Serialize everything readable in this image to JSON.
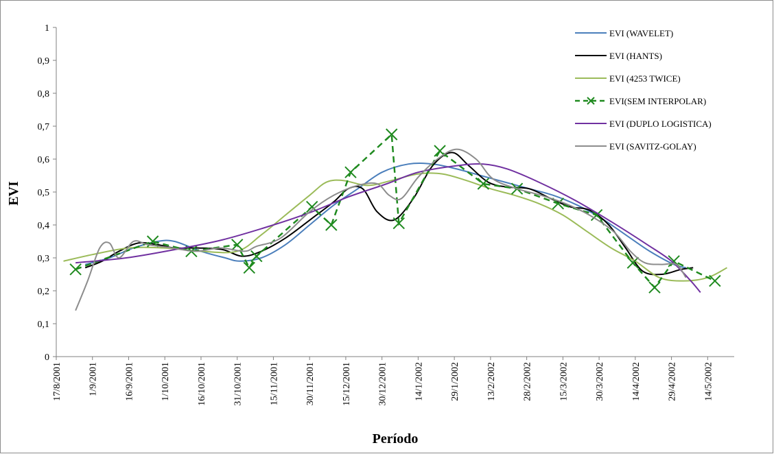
{
  "chart_data": {
    "type": "line",
    "title": "",
    "xlabel": "Período",
    "ylabel": "EVI",
    "ylim": [
      0,
      1
    ],
    "y_ticks": [
      "0",
      "0,1",
      "0,2",
      "0,3",
      "0,4",
      "0,5",
      "0,6",
      "0,7",
      "0,8",
      "0,9",
      "1"
    ],
    "x_range": [
      "2001-08-17",
      "2002-05-25"
    ],
    "x_ticks": [
      {
        "date": "2001-08-17",
        "label": "17/8/2001"
      },
      {
        "date": "2001-09-01",
        "label": "1/9/2001"
      },
      {
        "date": "2001-09-16",
        "label": "16/9/2001"
      },
      {
        "date": "2001-10-01",
        "label": "1/10/2001"
      },
      {
        "date": "2001-10-16",
        "label": "16/10/2001"
      },
      {
        "date": "2001-10-31",
        "label": "31/10/2001"
      },
      {
        "date": "2001-11-15",
        "label": "15/11/2001"
      },
      {
        "date": "2001-11-30",
        "label": "30/11/2001"
      },
      {
        "date": "2001-12-15",
        "label": "15/12/2001"
      },
      {
        "date": "2001-12-30",
        "label": "30/12/2001"
      },
      {
        "date": "2002-01-14",
        "label": "14/1/2002"
      },
      {
        "date": "2002-01-29",
        "label": "29/1/2002"
      },
      {
        "date": "2002-02-13",
        "label": "13/2/2002"
      },
      {
        "date": "2002-02-28",
        "label": "28/2/2002"
      },
      {
        "date": "2002-03-15",
        "label": "15/3/2002"
      },
      {
        "date": "2002-03-30",
        "label": "30/3/2002"
      },
      {
        "date": "2002-04-14",
        "label": "14/4/2002"
      },
      {
        "date": "2002-04-29",
        "label": "29/4/2002"
      },
      {
        "date": "2002-05-14",
        "label": "14/5/2002"
      }
    ],
    "grid": false,
    "legend_position": "top-right",
    "series": [
      {
        "name": "EVI (WAVELET)",
        "color": "#4a7ebb",
        "dash": false,
        "marker": "none",
        "points": [
          [
            "2001-08-29",
            0.28
          ],
          [
            "2001-09-08",
            0.3
          ],
          [
            "2001-09-18",
            0.33
          ],
          [
            "2001-09-28",
            0.35
          ],
          [
            "2001-10-05",
            0.35
          ],
          [
            "2001-10-16",
            0.32
          ],
          [
            "2001-10-26",
            0.3
          ],
          [
            "2001-11-01",
            0.29
          ],
          [
            "2001-11-10",
            0.3
          ],
          [
            "2001-11-20",
            0.34
          ],
          [
            "2001-11-30",
            0.4
          ],
          [
            "2001-12-10",
            0.46
          ],
          [
            "2001-12-20",
            0.51
          ],
          [
            "2001-12-30",
            0.56
          ],
          [
            "2002-01-10",
            0.585
          ],
          [
            "2002-01-20",
            0.585
          ],
          [
            "2002-01-30",
            0.57
          ],
          [
            "2002-02-09",
            0.55
          ],
          [
            "2002-02-19",
            0.53
          ],
          [
            "2002-03-01",
            0.51
          ],
          [
            "2002-03-11",
            0.49
          ],
          [
            "2002-03-21",
            0.46
          ],
          [
            "2002-03-31",
            0.42
          ],
          [
            "2002-04-10",
            0.37
          ],
          [
            "2002-04-20",
            0.32
          ],
          [
            "2002-04-30",
            0.28
          ],
          [
            "2002-05-05",
            0.27
          ]
        ]
      },
      {
        "name": "EVI (HANTS)",
        "color": "#000000",
        "dash": false,
        "marker": "none",
        "points": [
          [
            "2001-08-29",
            0.27
          ],
          [
            "2001-09-05",
            0.29
          ],
          [
            "2001-09-12",
            0.32
          ],
          [
            "2001-09-20",
            0.345
          ],
          [
            "2001-09-28",
            0.34
          ],
          [
            "2001-10-05",
            0.33
          ],
          [
            "2001-10-15",
            0.33
          ],
          [
            "2001-10-25",
            0.325
          ],
          [
            "2001-11-02",
            0.305
          ],
          [
            "2001-11-10",
            0.32
          ],
          [
            "2001-11-20",
            0.36
          ],
          [
            "2001-12-01",
            0.42
          ],
          [
            "2001-12-10",
            0.47
          ],
          [
            "2001-12-16",
            0.51
          ],
          [
            "2001-12-22",
            0.51
          ],
          [
            "2001-12-28",
            0.44
          ],
          [
            "2002-01-04",
            0.415
          ],
          [
            "2002-01-12",
            0.48
          ],
          [
            "2002-01-20",
            0.58
          ],
          [
            "2002-01-28",
            0.62
          ],
          [
            "2002-02-04",
            0.58
          ],
          [
            "2002-02-12",
            0.53
          ],
          [
            "2002-02-20",
            0.515
          ],
          [
            "2002-03-01",
            0.51
          ],
          [
            "2002-03-10",
            0.48
          ],
          [
            "2002-03-18",
            0.455
          ],
          [
            "2002-03-26",
            0.445
          ],
          [
            "2002-04-03",
            0.4
          ],
          [
            "2002-04-10",
            0.33
          ],
          [
            "2002-04-17",
            0.26
          ],
          [
            "2002-04-25",
            0.25
          ],
          [
            "2002-05-03",
            0.265
          ],
          [
            "2002-05-08",
            0.27
          ]
        ]
      },
      {
        "name": "EVI (4253 TWICE)",
        "color": "#9bbb59",
        "dash": false,
        "marker": "none",
        "points": [
          [
            "2001-08-20",
            0.29
          ],
          [
            "2001-09-01",
            0.31
          ],
          [
            "2001-09-16",
            0.33
          ],
          [
            "2001-10-01",
            0.33
          ],
          [
            "2001-10-16",
            0.32
          ],
          [
            "2001-10-31",
            0.32
          ],
          [
            "2001-11-10",
            0.37
          ],
          [
            "2001-11-20",
            0.43
          ],
          [
            "2001-11-30",
            0.49
          ],
          [
            "2001-12-07",
            0.53
          ],
          [
            "2001-12-14",
            0.535
          ],
          [
            "2001-12-24",
            0.52
          ],
          [
            "2002-01-03",
            0.535
          ],
          [
            "2002-01-14",
            0.555
          ],
          [
            "2002-01-24",
            0.555
          ],
          [
            "2002-02-03",
            0.535
          ],
          [
            "2002-02-13",
            0.51
          ],
          [
            "2002-02-23",
            0.49
          ],
          [
            "2002-03-05",
            0.465
          ],
          [
            "2002-03-15",
            0.43
          ],
          [
            "2002-03-25",
            0.38
          ],
          [
            "2002-04-04",
            0.33
          ],
          [
            "2002-04-14",
            0.29
          ],
          [
            "2002-04-24",
            0.24
          ],
          [
            "2002-05-04",
            0.23
          ],
          [
            "2002-05-14",
            0.24
          ],
          [
            "2002-05-22",
            0.27
          ]
        ]
      },
      {
        "name": "EVI(SEM INTERPOLAR)",
        "color": "#1f8a1f",
        "dash": true,
        "marker": "x",
        "points": [
          [
            "2001-08-25",
            0.265
          ],
          [
            "2001-09-26",
            0.35
          ],
          [
            "2001-10-12",
            0.32
          ],
          [
            "2001-10-31",
            0.34
          ],
          [
            "2001-11-05",
            0.27
          ],
          [
            "2001-11-08",
            0.305
          ],
          [
            "2001-12-01",
            0.455
          ],
          [
            "2001-12-09",
            0.4
          ],
          [
            "2001-12-17",
            0.56
          ],
          [
            "2002-01-03",
            0.675
          ],
          [
            "2002-01-06",
            0.405
          ],
          [
            "2002-01-23",
            0.625
          ],
          [
            "2002-02-10",
            0.525
          ],
          [
            "2002-02-24",
            0.51
          ],
          [
            "2002-03-13",
            0.465
          ],
          [
            "2002-03-29",
            0.43
          ],
          [
            "2002-04-13",
            0.285
          ],
          [
            "2002-04-22",
            0.21
          ],
          [
            "2002-04-30",
            0.29
          ],
          [
            "2002-05-17",
            0.23
          ]
        ]
      },
      {
        "name": "EVI (DUPLO  LOGISTICA)",
        "color": "#7030a0",
        "dash": false,
        "marker": "none",
        "points": [
          [
            "2001-08-25",
            0.285
          ],
          [
            "2001-09-15",
            0.3
          ],
          [
            "2001-10-05",
            0.325
          ],
          [
            "2001-10-25",
            0.355
          ],
          [
            "2001-11-15",
            0.4
          ],
          [
            "2001-12-01",
            0.44
          ],
          [
            "2001-12-16",
            0.485
          ],
          [
            "2002-01-01",
            0.525
          ],
          [
            "2002-01-14",
            0.56
          ],
          [
            "2002-01-30",
            0.58
          ],
          [
            "2002-02-10",
            0.585
          ],
          [
            "2002-02-20",
            0.57
          ],
          [
            "2002-03-05",
            0.53
          ],
          [
            "2002-03-20",
            0.475
          ],
          [
            "2002-04-04",
            0.41
          ],
          [
            "2002-04-19",
            0.34
          ],
          [
            "2002-04-29",
            0.29
          ],
          [
            "2002-05-07",
            0.23
          ],
          [
            "2002-05-11",
            0.195
          ]
        ]
      },
      {
        "name": "EVI (SAVITZ-GOLAY)",
        "color": "#8c8c8c",
        "dash": false,
        "marker": "none",
        "points": [
          [
            "2001-08-25",
            0.14
          ],
          [
            "2001-08-30",
            0.23
          ],
          [
            "2001-09-04",
            0.33
          ],
          [
            "2001-09-08",
            0.345
          ],
          [
            "2001-09-12",
            0.3
          ],
          [
            "2001-09-18",
            0.35
          ],
          [
            "2001-09-24",
            0.34
          ],
          [
            "2001-10-04",
            0.33
          ],
          [
            "2001-10-14",
            0.32
          ],
          [
            "2001-10-24",
            0.33
          ],
          [
            "2001-11-03",
            0.32
          ],
          [
            "2001-11-08",
            0.335
          ],
          [
            "2001-11-18",
            0.36
          ],
          [
            "2001-11-30",
            0.44
          ],
          [
            "2001-12-10",
            0.49
          ],
          [
            "2001-12-20",
            0.52
          ],
          [
            "2001-12-28",
            0.525
          ],
          [
            "2002-01-02",
            0.49
          ],
          [
            "2002-01-07",
            0.48
          ],
          [
            "2002-01-14",
            0.545
          ],
          [
            "2002-01-22",
            0.6
          ],
          [
            "2002-01-30",
            0.63
          ],
          [
            "2002-02-07",
            0.6
          ],
          [
            "2002-02-14",
            0.54
          ],
          [
            "2002-02-24",
            0.51
          ],
          [
            "2002-03-06",
            0.49
          ],
          [
            "2002-03-16",
            0.465
          ],
          [
            "2002-03-26",
            0.43
          ],
          [
            "2002-04-05",
            0.38
          ],
          [
            "2002-04-12",
            0.32
          ],
          [
            "2002-04-18",
            0.285
          ],
          [
            "2002-04-25",
            0.28
          ],
          [
            "2002-05-01",
            0.28
          ],
          [
            "2002-05-05",
            0.24
          ]
        ]
      }
    ]
  }
}
